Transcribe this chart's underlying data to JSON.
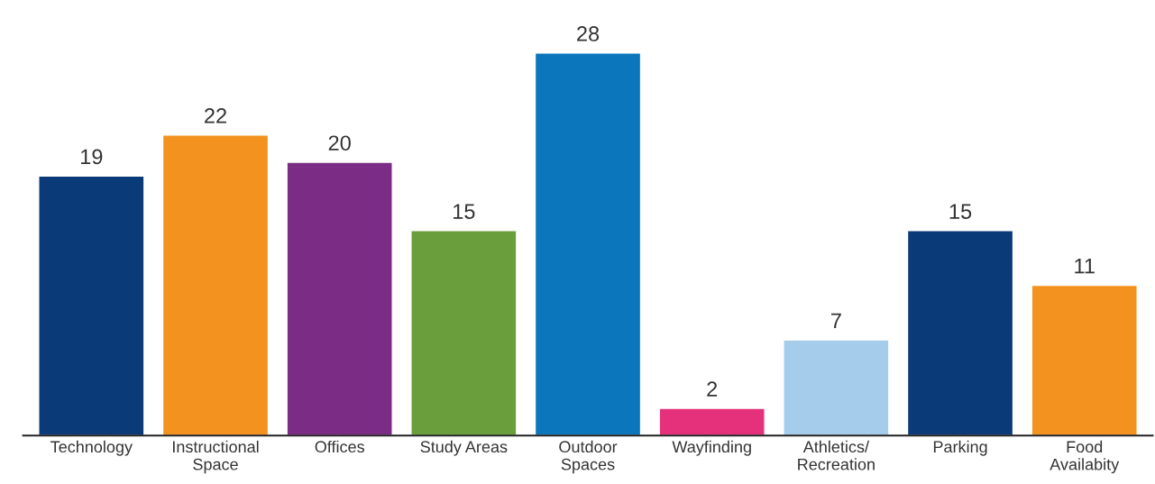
{
  "chart_data": {
    "type": "bar",
    "categories": [
      "Technology",
      "Instructional\nSpace",
      "Offices",
      "Study Areas",
      "Outdoor\nSpaces",
      "Wayfinding",
      "Athletics/\nRecreation",
      "Parking",
      "Food\nAvailabity"
    ],
    "values": [
      19,
      22,
      20,
      15,
      28,
      2,
      7,
      15,
      11
    ],
    "colors": [
      "#0b3a78",
      "#f3921f",
      "#7b2d86",
      "#6a9d3b",
      "#0b76bc",
      "#e5317b",
      "#a6ccec",
      "#0b3a78",
      "#f3921f"
    ],
    "data_labels": true,
    "grid": false,
    "legend": false
  }
}
